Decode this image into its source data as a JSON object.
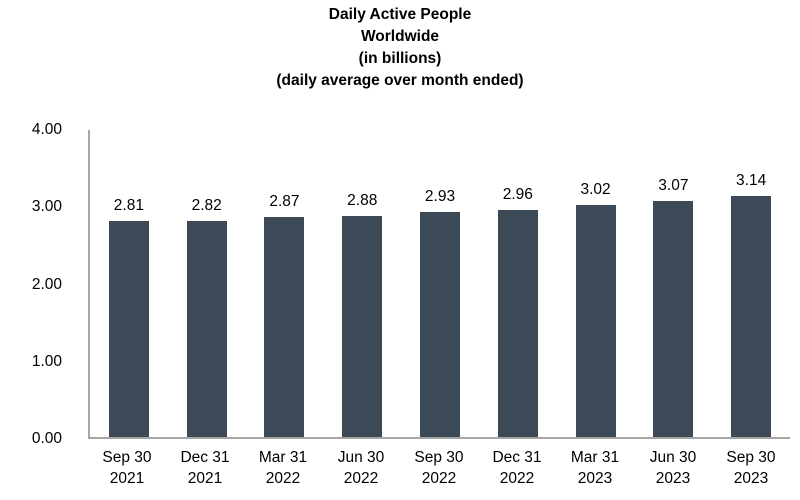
{
  "chart_data": {
    "type": "bar",
    "title_lines": [
      "Daily Active People",
      "Worldwide",
      "(in billions)",
      "(daily average over month ended)"
    ],
    "title": "Daily Active People Worldwide (in billions) (daily average over month ended)",
    "categories": [
      "Sep 30 2021",
      "Dec 31 2021",
      "Mar 31 2022",
      "Jun 30 2022",
      "Sep 30 2022",
      "Dec 31 2022",
      "Mar 31 2023",
      "Jun 30 2023",
      "Sep 30 2023"
    ],
    "values": [
      2.81,
      2.82,
      2.87,
      2.88,
      2.93,
      2.96,
      3.02,
      3.07,
      3.14
    ],
    "value_labels": [
      "2.81",
      "2.82",
      "2.87",
      "2.88",
      "2.93",
      "2.96",
      "3.02",
      "3.07",
      "3.14"
    ],
    "xlabel": "",
    "ylabel": "",
    "ylim": [
      0,
      4
    ],
    "ytick_labels": [
      "0.00",
      "1.00",
      "2.00",
      "3.00",
      "4.00"
    ],
    "grid": false,
    "legend_position": "none",
    "bar_color": "#3c4956",
    "axis_color": "#a6a6a6",
    "text_color": "#000000"
  }
}
